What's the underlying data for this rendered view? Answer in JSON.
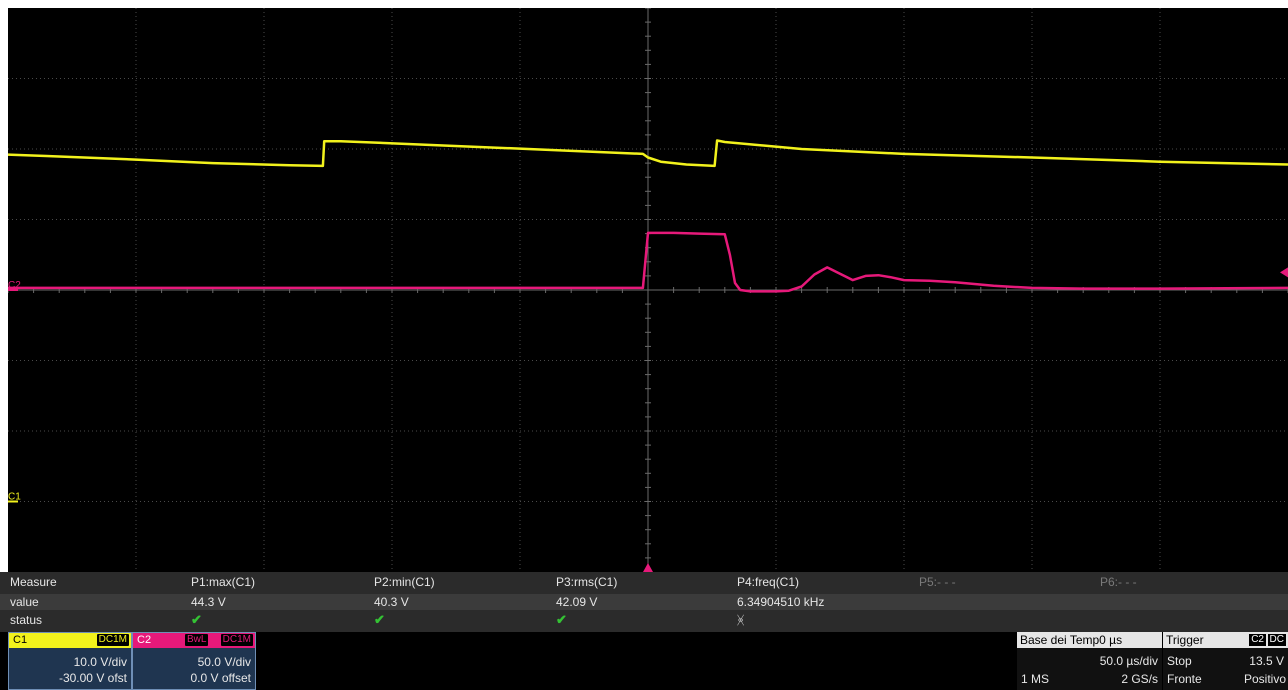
{
  "colors": {
    "c1": "#f2f21c",
    "c2": "#e6197a",
    "grid_bg": "#000000",
    "grid_line": "#4a4a4a",
    "panel": "#2b2b2b",
    "check": "#34c234"
  },
  "markers": {
    "c1": "C1",
    "c2": "C2"
  },
  "measure": {
    "headers": [
      "Measure",
      "P1:max(C1)",
      "P2:min(C1)",
      "P3:rms(C1)",
      "P4:freq(C1)",
      "P5:- - -",
      "P6:- - -"
    ],
    "row_labels": {
      "value": "value",
      "status": "status"
    },
    "values": [
      "44.3 V",
      "40.3 V",
      "42.09 V",
      "6.34904510 kHz"
    ],
    "status": [
      "check",
      "check",
      "check",
      "x"
    ],
    "status_glyphs": {
      "check": "✔",
      "x": "ᚸ"
    }
  },
  "channels": {
    "c1": {
      "label": "C1",
      "coupling": "DC1M",
      "scale": "10.0 V/div",
      "offset": "-30.00 V ofst"
    },
    "c2": {
      "label": "C2",
      "bandwidth": "BwL",
      "coupling": "DC1M",
      "scale": "50.0 V/div",
      "offset": "0.0 V offset"
    }
  },
  "timebase": {
    "title": "Base dei Temp",
    "delay": "0 µs",
    "scale": "50.0 µs/div",
    "samples": "1 MS",
    "rate": "2 GS/s"
  },
  "trigger": {
    "title": "Trigger",
    "source": "C2",
    "coupling": "DC",
    "state": "Stop",
    "level": "13.5 V",
    "type": "Fronte",
    "slope": "Positivo"
  },
  "chart_data": {
    "type": "line",
    "xlabel": "",
    "ylabel": "",
    "x_range": [
      -250,
      250
    ],
    "y_range": [
      -4,
      4
    ],
    "grid": true,
    "series": [
      {
        "x": [
          -250,
          -235,
          -200,
          -170,
          -140,
          -127,
          -126.5,
          -120,
          -80,
          -40,
          -2,
          0,
          5,
          15,
          26,
          27,
          30,
          60,
          100,
          150,
          200,
          250
        ],
        "y": [
          1.92,
          1.9,
          1.85,
          1.8,
          1.77,
          1.76,
          2.11,
          2.11,
          2.05,
          1.99,
          1.93,
          1.88,
          1.82,
          1.78,
          1.76,
          2.12,
          2.1,
          2.0,
          1.93,
          1.88,
          1.82,
          1.78
        ]
      },
      {
        "x": [
          -250,
          -200,
          -150,
          -100,
          -50,
          -2,
          0,
          10,
          20,
          30,
          32,
          34,
          36,
          40,
          50,
          55,
          60,
          65,
          70,
          75,
          80,
          85,
          90,
          95,
          100,
          110,
          120,
          135,
          150,
          170,
          200,
          250
        ],
        "y": [
          0.03,
          0.03,
          0.03,
          0.03,
          0.03,
          0.03,
          0.81,
          0.81,
          0.8,
          0.79,
          0.5,
          0.1,
          0.0,
          -0.02,
          -0.02,
          -0.01,
          0.05,
          0.22,
          0.32,
          0.23,
          0.14,
          0.2,
          0.21,
          0.18,
          0.14,
          0.13,
          0.11,
          0.06,
          0.03,
          0.02,
          0.02,
          0.03
        ]
      }
    ]
  }
}
